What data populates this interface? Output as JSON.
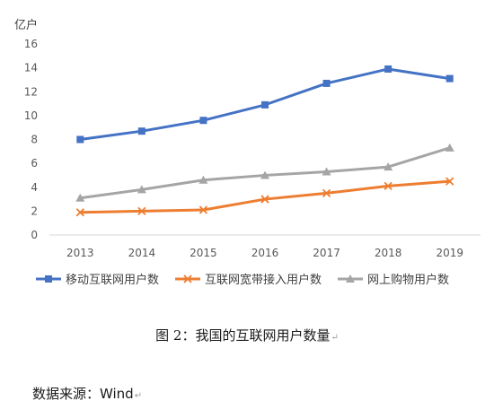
{
  "chart_data": {
    "type": "line",
    "y_unit_label": "亿户",
    "categories": [
      "2013",
      "2014",
      "2015",
      "2016",
      "2017",
      "2018",
      "2019"
    ],
    "ylim": [
      0,
      16
    ],
    "yticks": [
      0,
      2,
      4,
      6,
      8,
      10,
      12,
      14,
      16
    ],
    "grid": false,
    "legend_position": "bottom",
    "series": [
      {
        "name": "移动互联网用户数",
        "marker": "square",
        "color": "#4472c4",
        "values": [
          8.0,
          8.7,
          9.6,
          10.9,
          12.7,
          13.9,
          13.1
        ]
      },
      {
        "name": "互联网宽带接入用户数",
        "marker": "x",
        "color": "#ed7d31",
        "values": [
          1.9,
          2.0,
          2.1,
          3.0,
          3.5,
          4.1,
          4.5
        ]
      },
      {
        "name": "网上购物用户数",
        "marker": "triangle",
        "color": "#a5a5a5",
        "values": [
          3.1,
          3.8,
          4.6,
          5.0,
          5.3,
          5.7,
          7.3
        ]
      }
    ]
  },
  "caption": {
    "text": "图 2：我国的互联网用户数量",
    "mark": "↵"
  },
  "source": {
    "text": "数据来源：Wind",
    "mark": "↵"
  }
}
